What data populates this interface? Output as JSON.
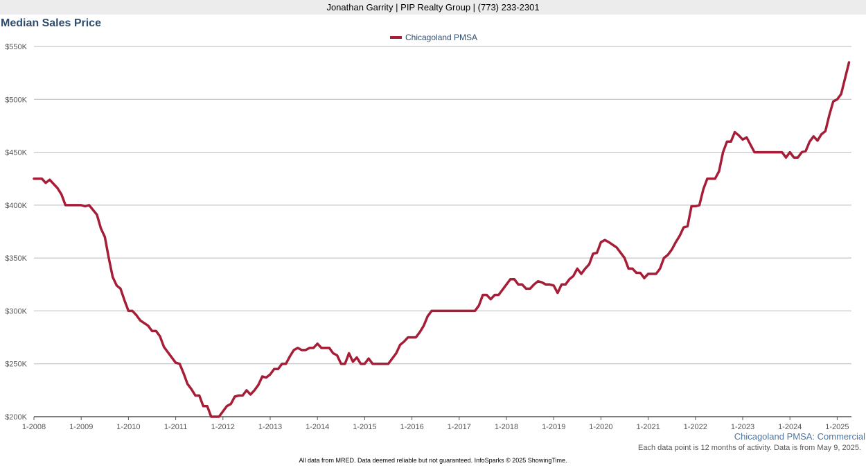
{
  "header": {
    "agent_line": "Jonathan Garrity | PIP Realty Group | (773) 233-2301"
  },
  "chart_data": {
    "type": "line",
    "title": "Median Sales Price",
    "xlabel": "",
    "ylabel": "",
    "y_tick_labels": [
      "$200K",
      "$250K",
      "$300K",
      "$350K",
      "$400K",
      "$450K",
      "$500K",
      "$550K"
    ],
    "y_ticks": [
      200000,
      250000,
      300000,
      350000,
      400000,
      450000,
      500000,
      550000
    ],
    "ylim": [
      200000,
      550000
    ],
    "x_tick_labels": [
      "1-2008",
      "1-2009",
      "1-2010",
      "1-2011",
      "1-2012",
      "1-2013",
      "1-2014",
      "1-2015",
      "1-2016",
      "1-2017",
      "1-2018",
      "1-2019",
      "1-2020",
      "1-2021",
      "1-2022",
      "1-2023",
      "1-2024",
      "1-2025"
    ],
    "xlim": [
      "2008-01",
      "2025-04"
    ],
    "grid": true,
    "legend_position": "top-center",
    "series": [
      {
        "name": "Chicagoland PMSA",
        "color": "#a51d36",
        "points": [
          [
            "2008-01",
            425000
          ],
          [
            "2008-03",
            425000
          ],
          [
            "2008-04",
            421000
          ],
          [
            "2008-05",
            424000
          ],
          [
            "2008-07",
            416000
          ],
          [
            "2008-08",
            410000
          ],
          [
            "2008-09",
            400000
          ],
          [
            "2008-12",
            400000
          ],
          [
            "2009-01",
            400000
          ],
          [
            "2009-02",
            399000
          ],
          [
            "2009-03",
            400000
          ],
          [
            "2009-05",
            391000
          ],
          [
            "2009-06",
            378000
          ],
          [
            "2009-07",
            370000
          ],
          [
            "2009-08",
            350000
          ],
          [
            "2009-09",
            332000
          ],
          [
            "2009-10",
            324000
          ],
          [
            "2009-11",
            321000
          ],
          [
            "2009-12",
            310000
          ],
          [
            "2010-01",
            300000
          ],
          [
            "2010-02",
            300000
          ],
          [
            "2010-03",
            296000
          ],
          [
            "2010-04",
            291000
          ],
          [
            "2010-06",
            286000
          ],
          [
            "2010-07",
            281000
          ],
          [
            "2010-08",
            281000
          ],
          [
            "2010-09",
            276000
          ],
          [
            "2010-10",
            266000
          ],
          [
            "2010-12",
            256000
          ],
          [
            "2011-01",
            251000
          ],
          [
            "2011-02",
            250000
          ],
          [
            "2011-03",
            241000
          ],
          [
            "2011-04",
            231000
          ],
          [
            "2011-05",
            226000
          ],
          [
            "2011-06",
            220000
          ],
          [
            "2011-07",
            220000
          ],
          [
            "2011-08",
            210000
          ],
          [
            "2011-09",
            210000
          ],
          [
            "2011-10",
            200000
          ],
          [
            "2011-12",
            200000
          ],
          [
            "2012-02",
            210000
          ],
          [
            "2012-03",
            212000
          ],
          [
            "2012-04",
            219000
          ],
          [
            "2012-05",
            220000
          ],
          [
            "2012-06",
            220000
          ],
          [
            "2012-07",
            225000
          ],
          [
            "2012-08",
            221000
          ],
          [
            "2012-09",
            225000
          ],
          [
            "2012-10",
            230000
          ],
          [
            "2012-11",
            238000
          ],
          [
            "2012-12",
            237000
          ],
          [
            "2013-01",
            240000
          ],
          [
            "2013-02",
            245000
          ],
          [
            "2013-03",
            245000
          ],
          [
            "2013-04",
            250000
          ],
          [
            "2013-05",
            250000
          ],
          [
            "2013-06",
            257000
          ],
          [
            "2013-07",
            263000
          ],
          [
            "2013-08",
            265000
          ],
          [
            "2013-09",
            263000
          ],
          [
            "2013-10",
            263000
          ],
          [
            "2013-11",
            265000
          ],
          [
            "2013-12",
            265000
          ],
          [
            "2014-01",
            269000
          ],
          [
            "2014-02",
            265000
          ],
          [
            "2014-04",
            265000
          ],
          [
            "2014-05",
            260000
          ],
          [
            "2014-06",
            258000
          ],
          [
            "2014-07",
            250000
          ],
          [
            "2014-08",
            250000
          ],
          [
            "2014-09",
            260000
          ],
          [
            "2014-10",
            252000
          ],
          [
            "2014-11",
            256000
          ],
          [
            "2014-12",
            250000
          ],
          [
            "2015-01",
            250000
          ],
          [
            "2015-02",
            255000
          ],
          [
            "2015-03",
            250000
          ],
          [
            "2015-05",
            250000
          ],
          [
            "2015-07",
            250000
          ],
          [
            "2015-09",
            260000
          ],
          [
            "2015-10",
            268000
          ],
          [
            "2015-11",
            271000
          ],
          [
            "2015-12",
            275000
          ],
          [
            "2016-01",
            275000
          ],
          [
            "2016-02",
            275000
          ],
          [
            "2016-03",
            280000
          ],
          [
            "2016-04",
            286000
          ],
          [
            "2016-05",
            295000
          ],
          [
            "2016-06",
            300000
          ],
          [
            "2016-07",
            300000
          ],
          [
            "2016-10",
            300000
          ],
          [
            "2016-12",
            300000
          ],
          [
            "2017-01",
            300000
          ],
          [
            "2017-03",
            300000
          ],
          [
            "2017-05",
            300000
          ],
          [
            "2017-06",
            305000
          ],
          [
            "2017-07",
            315000
          ],
          [
            "2017-08",
            315000
          ],
          [
            "2017-09",
            311000
          ],
          [
            "2017-10",
            315000
          ],
          [
            "2017-11",
            315000
          ],
          [
            "2017-12",
            320000
          ],
          [
            "2018-01",
            325000
          ],
          [
            "2018-02",
            330000
          ],
          [
            "2018-03",
            330000
          ],
          [
            "2018-04",
            325000
          ],
          [
            "2018-05",
            325000
          ],
          [
            "2018-06",
            321000
          ],
          [
            "2018-07",
            321000
          ],
          [
            "2018-08",
            325000
          ],
          [
            "2018-09",
            328000
          ],
          [
            "2018-10",
            327000
          ],
          [
            "2018-11",
            325000
          ],
          [
            "2018-12",
            325000
          ],
          [
            "2019-01",
            324000
          ],
          [
            "2019-02",
            317000
          ],
          [
            "2019-03",
            325000
          ],
          [
            "2019-04",
            325000
          ],
          [
            "2019-05",
            330000
          ],
          [
            "2019-06",
            333000
          ],
          [
            "2019-07",
            340000
          ],
          [
            "2019-08",
            335000
          ],
          [
            "2019-09",
            340000
          ],
          [
            "2019-10",
            344000
          ],
          [
            "2019-11",
            354000
          ],
          [
            "2019-12",
            355000
          ],
          [
            "2020-01",
            365000
          ],
          [
            "2020-02",
            367000
          ],
          [
            "2020-03",
            365000
          ],
          [
            "2020-05",
            360000
          ],
          [
            "2020-07",
            350000
          ],
          [
            "2020-08",
            340000
          ],
          [
            "2020-09",
            340000
          ],
          [
            "2020-10",
            336000
          ],
          [
            "2020-11",
            336000
          ],
          [
            "2020-12",
            331000
          ],
          [
            "2021-01",
            335000
          ],
          [
            "2021-03",
            335000
          ],
          [
            "2021-04",
            340000
          ],
          [
            "2021-05",
            350000
          ],
          [
            "2021-06",
            353000
          ],
          [
            "2021-07",
            358000
          ],
          [
            "2021-08",
            365000
          ],
          [
            "2021-09",
            371000
          ],
          [
            "2021-10",
            379000
          ],
          [
            "2021-11",
            380000
          ],
          [
            "2021-12",
            399000
          ],
          [
            "2022-01",
            399000
          ],
          [
            "2022-02",
            400000
          ],
          [
            "2022-03",
            415000
          ],
          [
            "2022-04",
            425000
          ],
          [
            "2022-06",
            425000
          ],
          [
            "2022-07",
            432000
          ],
          [
            "2022-08",
            450000
          ],
          [
            "2022-09",
            460000
          ],
          [
            "2022-10",
            460000
          ],
          [
            "2022-11",
            469000
          ],
          [
            "2022-12",
            466000
          ],
          [
            "2023-01",
            462000
          ],
          [
            "2023-02",
            464000
          ],
          [
            "2023-03",
            457000
          ],
          [
            "2023-04",
            450000
          ],
          [
            "2023-06",
            450000
          ],
          [
            "2023-08",
            450000
          ],
          [
            "2023-10",
            450000
          ],
          [
            "2023-11",
            450000
          ],
          [
            "2023-12",
            445000
          ],
          [
            "2024-01",
            450000
          ],
          [
            "2024-02",
            445000
          ],
          [
            "2024-03",
            445000
          ],
          [
            "2024-04",
            450000
          ],
          [
            "2024-05",
            451000
          ],
          [
            "2024-06",
            460000
          ],
          [
            "2024-07",
            465000
          ],
          [
            "2024-08",
            461000
          ],
          [
            "2024-09",
            467000
          ],
          [
            "2024-10",
            470000
          ],
          [
            "2024-11",
            485000
          ],
          [
            "2024-12",
            498000
          ],
          [
            "2025-01",
            500000
          ],
          [
            "2025-02",
            505000
          ],
          [
            "2025-03",
            520000
          ],
          [
            "2025-04",
            535000
          ]
        ]
      }
    ]
  },
  "footer": {
    "source_label": "Chicagoland PMSA: Commercial",
    "note": "Each data point is 12 months of activity. Data is from May 9, 2025.",
    "disclaimer": "All data from MRED. Data deemed reliable but not guaranteed. InfoSparks © 2025 ShowingTime."
  }
}
